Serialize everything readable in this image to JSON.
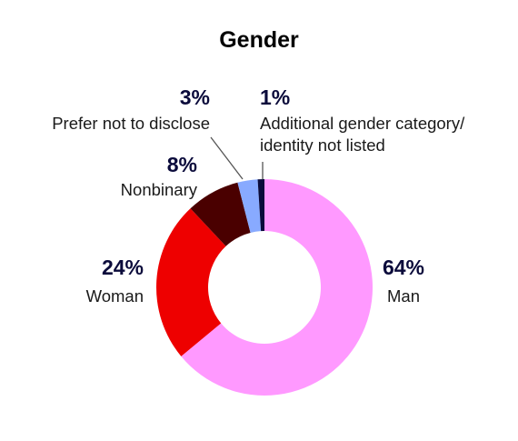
{
  "chart_data": {
    "type": "pie",
    "title": "Gender",
    "categories": [
      "Man",
      "Woman",
      "Nonbinary",
      "Prefer not to disclose",
      "Additional gender category/ identity not listed"
    ],
    "values": [
      64,
      24,
      8,
      3,
      1
    ],
    "value_labels": [
      "64%",
      "24%",
      "8%",
      "3%",
      "1%"
    ],
    "label_lines": [
      [
        "Man"
      ],
      [
        "Woman"
      ],
      [
        "Nonbinary"
      ],
      [
        "Prefer not to disclose"
      ],
      [
        "Additional gender category/",
        "identity not listed"
      ]
    ],
    "colors": [
      "#ff99ff",
      "#ee0000",
      "#4a0000",
      "#88aaff",
      "#0b0b3b"
    ],
    "donut": true
  }
}
